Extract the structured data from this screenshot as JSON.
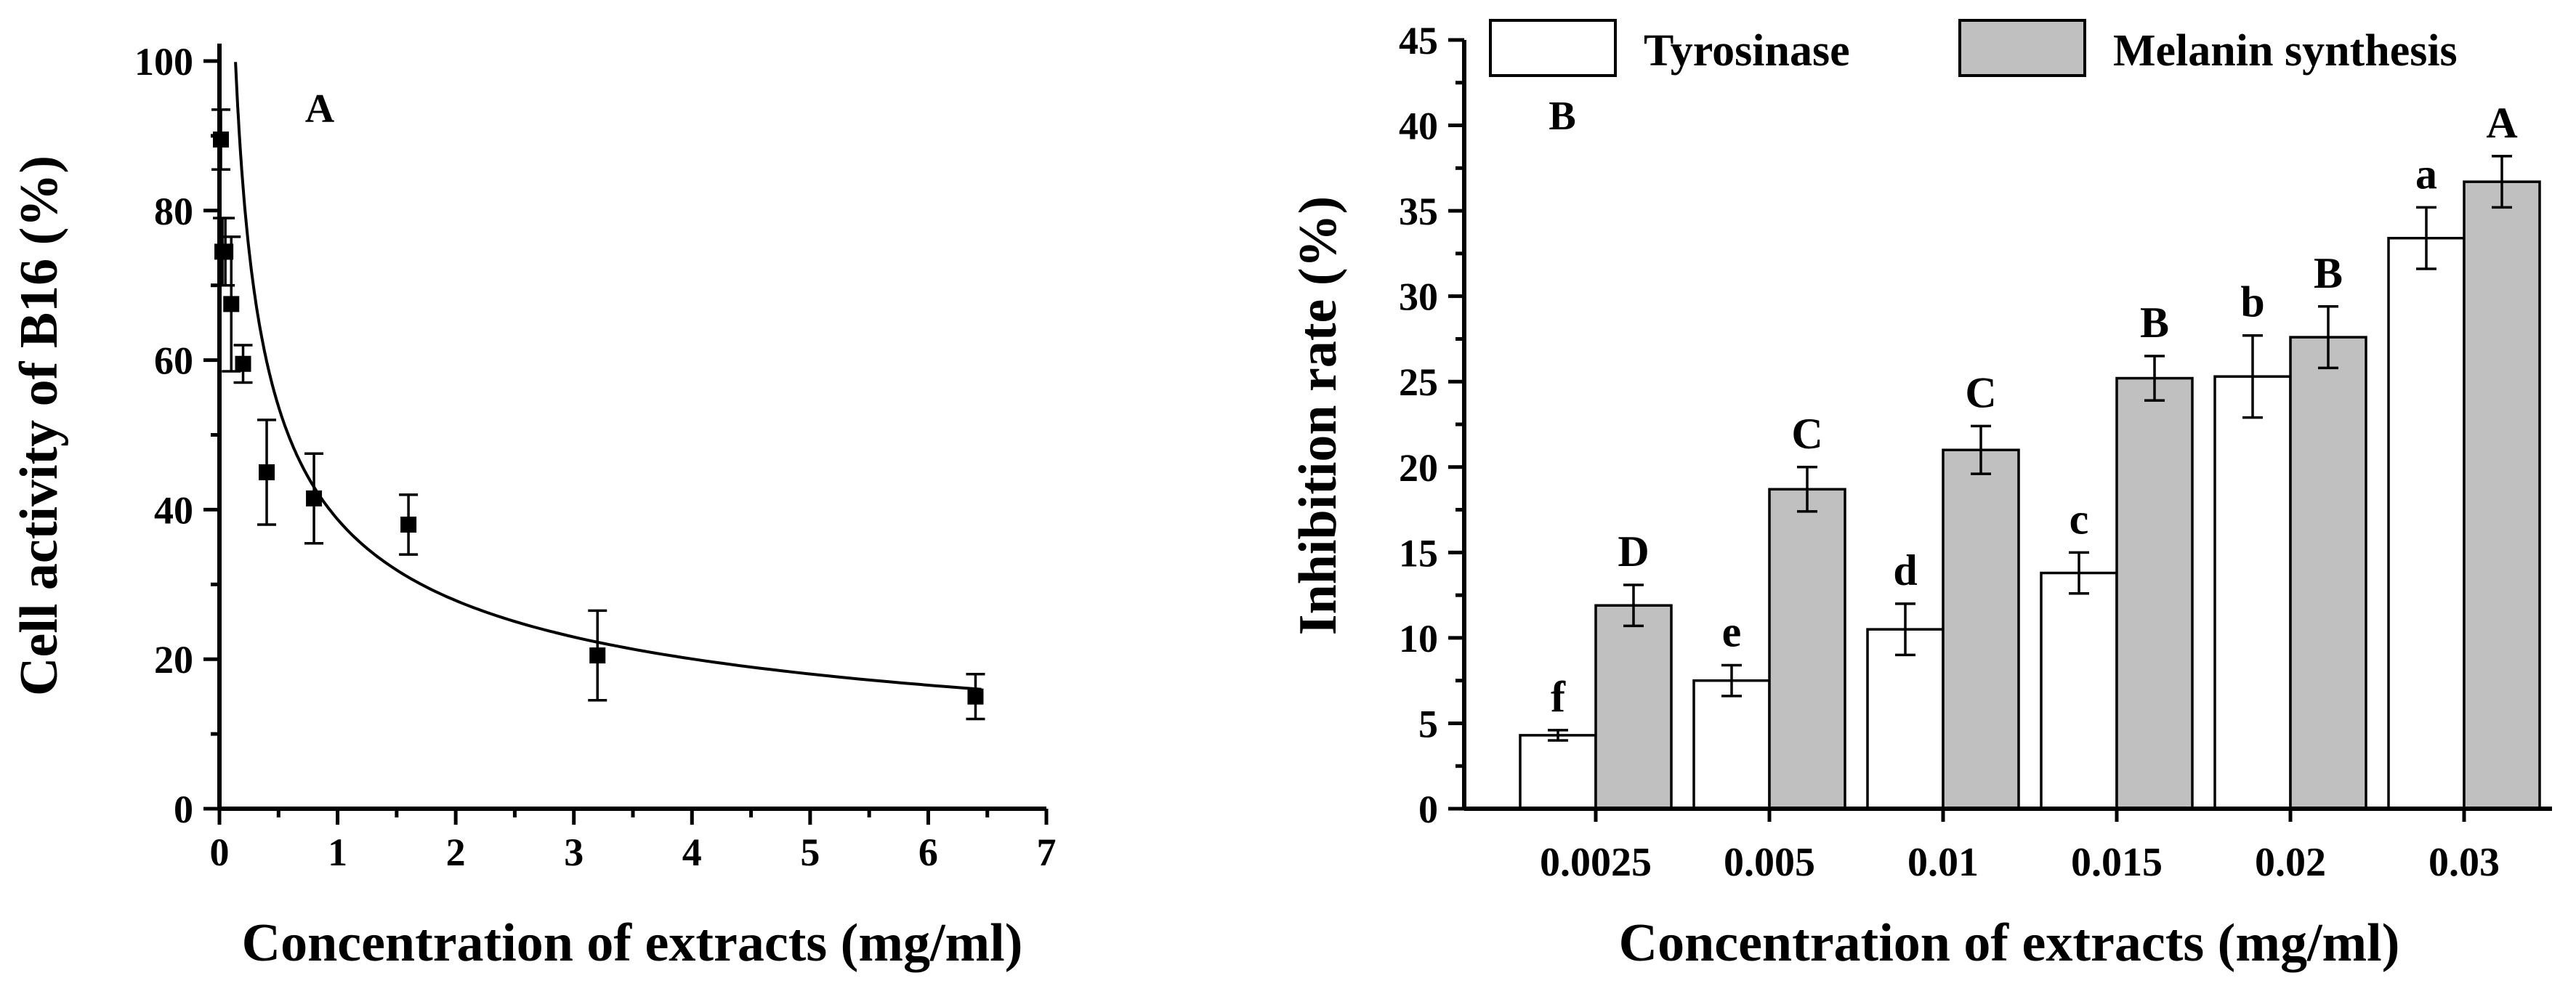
{
  "chart_data": [
    {
      "type": "scatter",
      "panel_label": "A",
      "xlabel": "Concentration of extracts (mg/ml)",
      "ylabel": "Cell activity of B16 (%)",
      "xlim": [
        0,
        7
      ],
      "ylim": [
        0,
        100
      ],
      "xticks": [
        "0",
        "1",
        "2",
        "3",
        "4",
        "5",
        "6",
        "7"
      ],
      "yticks": [
        "0",
        "20",
        "40",
        "60",
        "80",
        "100"
      ],
      "points": [
        {
          "x": 0.0125,
          "y": 89.5,
          "err": 4
        },
        {
          "x": 0.025,
          "y": 74.5,
          "err": 4.5
        },
        {
          "x": 0.05,
          "y": 74.5,
          "err": 4.5
        },
        {
          "x": 0.1,
          "y": 67.5,
          "err": 9
        },
        {
          "x": 0.2,
          "y": 59.5,
          "err": 2.5
        },
        {
          "x": 0.4,
          "y": 45,
          "err": 7
        },
        {
          "x": 0.8,
          "y": 41.5,
          "err": 6
        },
        {
          "x": 1.6,
          "y": 38,
          "err": 4
        },
        {
          "x": 3.2,
          "y": 20.5,
          "err": 6
        },
        {
          "x": 6.4,
          "y": 15,
          "err": 3
        }
      ],
      "fit": {
        "type": "power",
        "a": 38.7,
        "b": -0.475
      }
    },
    {
      "type": "bar",
      "panel_label": "B",
      "xlabel": "Concentration of extracts (mg/ml)",
      "ylabel": "Inhibition rate (%)",
      "ylim": [
        0,
        45
      ],
      "yticks": [
        "0",
        "5",
        "10",
        "15",
        "20",
        "25",
        "30",
        "35",
        "40",
        "45"
      ],
      "categories": [
        "0.0025",
        "0.005",
        "0.01",
        "0.015",
        "0.02",
        "0.03"
      ],
      "series": [
        {
          "name": "Tyrosinase",
          "color": "#ffffff",
          "values": [
            4.3,
            7.5,
            10.5,
            13.8,
            25.3,
            33.4
          ],
          "errors": [
            0.3,
            0.9,
            1.5,
            1.2,
            2.4,
            1.8
          ],
          "letters": [
            "f",
            "e",
            "d",
            "c",
            "b",
            "a"
          ]
        },
        {
          "name": "Melanin synthesis",
          "color": "#c0c0c0",
          "values": [
            11.9,
            18.7,
            21.0,
            25.2,
            27.6,
            36.7
          ],
          "errors": [
            1.2,
            1.3,
            1.4,
            1.3,
            1.8,
            1.5
          ],
          "letters": [
            "D",
            "C",
            "C",
            "B",
            "B",
            "A"
          ]
        }
      ],
      "legend_position": "top"
    }
  ]
}
